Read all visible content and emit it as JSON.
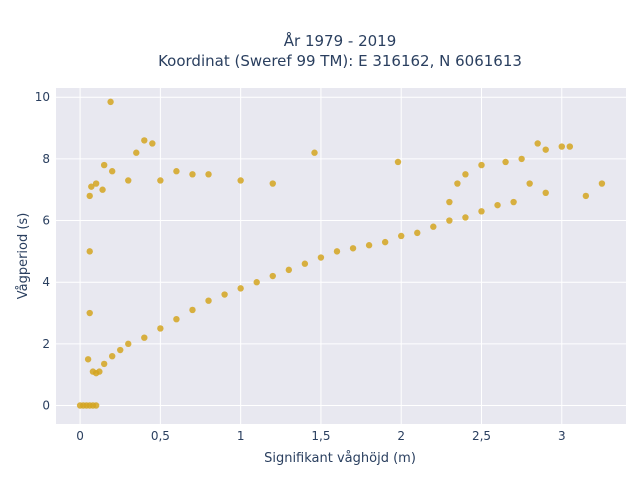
{
  "chart_data": {
    "type": "scatter",
    "title": "År 1979 - 2019",
    "subtitle": "Koordinat (Sweref 99 TM): E 316162, N 6061613",
    "xlabel": "Signifikant våghöjd (m)",
    "ylabel": "Vågperiod (s)",
    "xlim": [
      -0.15,
      3.4
    ],
    "ylim": [
      -0.6,
      10.3
    ],
    "x_ticks": [
      0,
      0.5,
      1,
      1.5,
      2,
      2.5,
      3
    ],
    "x_tick_labels": [
      "0",
      "0,5",
      "1",
      "1,5",
      "2",
      "2,5",
      "3"
    ],
    "y_ticks": [
      0,
      2,
      4,
      6,
      8,
      10
    ],
    "y_tick_labels": [
      "0",
      "2",
      "4",
      "6",
      "8",
      "10"
    ],
    "grid": true,
    "legend": "none",
    "marker_color": "#d4a520",
    "plot_background": "#e8e8f0",
    "series": [
      {
        "points": [
          [
            0.0,
            0.0
          ],
          [
            0.02,
            0.0
          ],
          [
            0.04,
            0.0
          ],
          [
            0.06,
            0.0
          ],
          [
            0.08,
            0.0
          ],
          [
            0.1,
            0.0
          ],
          [
            0.19,
            9.85
          ],
          [
            0.05,
            1.5
          ],
          [
            0.06,
            3.0
          ],
          [
            0.06,
            5.0
          ],
          [
            0.06,
            6.8
          ],
          [
            0.07,
            7.1
          ],
          [
            0.08,
            1.1
          ],
          [
            0.1,
            1.05
          ],
          [
            0.12,
            1.1
          ],
          [
            0.1,
            7.2
          ],
          [
            0.14,
            7.0
          ],
          [
            0.15,
            1.35
          ],
          [
            0.15,
            7.8
          ],
          [
            0.2,
            7.6
          ],
          [
            0.2,
            1.6
          ],
          [
            0.25,
            1.8
          ],
          [
            0.3,
            2.0
          ],
          [
            0.3,
            7.3
          ],
          [
            0.35,
            8.2
          ],
          [
            0.4,
            8.6
          ],
          [
            0.45,
            8.5
          ],
          [
            0.4,
            2.2
          ],
          [
            0.5,
            2.5
          ],
          [
            0.5,
            7.3
          ],
          [
            0.6,
            2.8
          ],
          [
            0.6,
            7.6
          ],
          [
            0.7,
            3.1
          ],
          [
            0.7,
            7.5
          ],
          [
            0.8,
            3.4
          ],
          [
            0.8,
            7.5
          ],
          [
            0.9,
            3.6
          ],
          [
            1.0,
            3.8
          ],
          [
            1.0,
            7.3
          ],
          [
            1.1,
            4.0
          ],
          [
            1.2,
            4.2
          ],
          [
            1.2,
            7.2
          ],
          [
            1.3,
            4.4
          ],
          [
            1.4,
            4.6
          ],
          [
            1.5,
            4.8
          ],
          [
            1.46,
            8.2
          ],
          [
            1.6,
            5.0
          ],
          [
            1.7,
            5.1
          ],
          [
            1.8,
            5.2
          ],
          [
            1.9,
            5.3
          ],
          [
            1.98,
            7.9
          ],
          [
            2.0,
            5.5
          ],
          [
            2.1,
            5.6
          ],
          [
            2.2,
            5.8
          ],
          [
            2.3,
            6.0
          ],
          [
            2.3,
            6.6
          ],
          [
            2.35,
            7.2
          ],
          [
            2.4,
            6.1
          ],
          [
            2.4,
            7.5
          ],
          [
            2.5,
            6.3
          ],
          [
            2.5,
            7.8
          ],
          [
            2.6,
            6.5
          ],
          [
            2.65,
            7.9
          ],
          [
            2.7,
            6.6
          ],
          [
            2.75,
            8.0
          ],
          [
            2.8,
            7.2
          ],
          [
            2.85,
            8.5
          ],
          [
            2.9,
            6.9
          ],
          [
            2.9,
            8.3
          ],
          [
            3.0,
            8.4
          ],
          [
            3.05,
            8.4
          ],
          [
            3.25,
            7.2
          ],
          [
            3.15,
            6.8
          ]
        ]
      }
    ]
  }
}
